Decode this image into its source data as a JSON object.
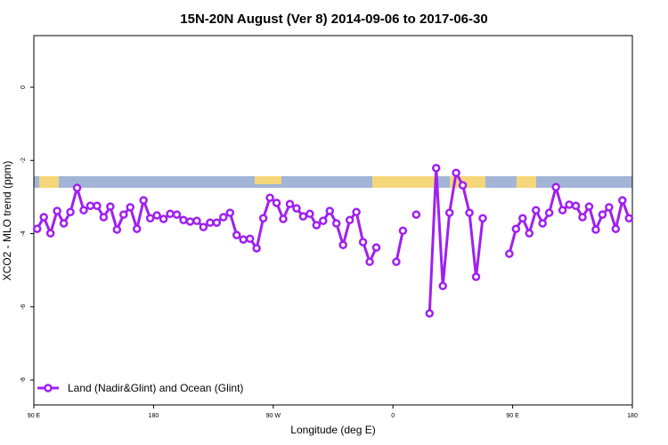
{
  "chart_data": {
    "type": "line",
    "title": "15N-20N August (Ver 8)   2014-09-06 to 2017-06-30",
    "x_label": "Longitude (deg E)",
    "y_label": "XCO2 - MLO trend (ppm)",
    "xlim": [
      90,
      540
    ],
    "ylim": [
      -8.68,
      1.41
    ],
    "xticks": [
      {
        "value": 90,
        "label": "90 E"
      },
      {
        "value": 180,
        "label": "180"
      },
      {
        "value": 270,
        "label": "90 W"
      },
      {
        "value": 360,
        "label": "0"
      },
      {
        "value": 450,
        "label": "90 E"
      },
      {
        "value": 540,
        "label": "180"
      }
    ],
    "yticks": [
      0,
      -2,
      -4,
      -6,
      -8
    ],
    "legend": "bottom-left",
    "x": [
      92.5,
      97.5,
      102.5,
      107.5,
      112.5,
      117.5,
      122.5,
      127.5,
      132.5,
      137.5,
      142.5,
      147.5,
      152.5,
      157.5,
      162.5,
      167.5,
      172.5,
      177.5,
      182.5,
      187.5,
      192.5,
      197.5,
      202.5,
      207.5,
      212.5,
      217.5,
      222.5,
      227.5,
      232.5,
      237.5,
      242.5,
      247.5,
      252.5,
      257.5,
      262.5,
      267.5,
      272.5,
      277.5,
      282.5,
      287.5,
      292.5,
      297.5,
      302.5,
      307.5,
      312.5,
      317.5,
      322.5,
      327.5,
      332.5,
      337.5,
      342.5,
      347.5,
      352.5,
      357.5,
      362.5,
      367.5,
      372.5,
      377.5,
      382.5,
      387.5,
      392.5,
      397.5,
      402.5,
      407.5,
      412.5,
      417.5,
      422.5,
      427.5,
      432.5,
      437.5,
      442.5,
      447.5,
      452.5,
      457.5,
      462.5,
      467.5,
      472.5,
      477.5,
      482.5,
      487.5,
      492.5,
      497.5,
      502.5,
      507.5,
      512.5,
      517.5,
      522.5,
      527.5,
      532.5,
      537.5
    ],
    "series": [
      {
        "name": "Land (Nadir&Glint) and Ocean (Glint)",
        "color": "#a020f0",
        "values": [
          -3.87,
          -3.55,
          -3.99,
          -3.38,
          -3.72,
          -3.41,
          -2.75,
          -3.36,
          -3.24,
          -3.24,
          -3.55,
          -3.26,
          -3.89,
          -3.48,
          -3.28,
          -3.87,
          -3.09,
          -3.58,
          -3.5,
          -3.6,
          -3.46,
          -3.48,
          -3.63,
          -3.67,
          -3.65,
          -3.82,
          -3.7,
          -3.7,
          -3.55,
          -3.43,
          -4.04,
          -4.16,
          -4.14,
          -4.4,
          -3.58,
          -3.02,
          -3.16,
          -3.6,
          -3.19,
          -3.31,
          -3.53,
          -3.46,
          -3.77,
          -3.65,
          -3.38,
          -3.72,
          -4.31,
          -3.63,
          -3.41,
          -4.23,
          -4.77,
          -4.38,
          null,
          null,
          -4.77,
          -3.92,
          null,
          -3.48,
          null,
          -6.18,
          -2.21,
          -5.43,
          -3.43,
          -2.34,
          -2.68,
          -3.43,
          -5.18,
          -3.58,
          null,
          null,
          null,
          -4.55,
          -3.87,
          -3.58,
          -3.99,
          -3.36,
          -3.72,
          -3.43,
          -2.73,
          -3.36,
          -3.21,
          -3.24,
          -3.55,
          -3.26,
          -3.89,
          -3.48,
          -3.28,
          -3.87,
          -3.09,
          -3.58
        ]
      }
    ]
  }
}
